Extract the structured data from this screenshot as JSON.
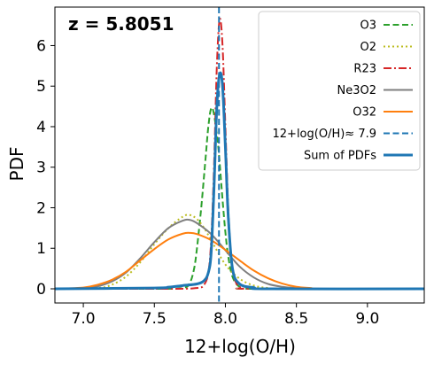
{
  "chart_data": {
    "type": "line",
    "annotation": "z = 5.8051",
    "xlabel": "12+log(O/H)",
    "ylabel": "PDF",
    "xlim": [
      6.8,
      9.4
    ],
    "ylim": [
      -0.35,
      6.95
    ],
    "xticks": [
      7.0,
      7.5,
      8.0,
      8.5,
      9.0
    ],
    "xtick_labels": [
      "7.0",
      "7.5",
      "8.0",
      "8.5",
      "9.0"
    ],
    "yticks": [
      0,
      1,
      2,
      3,
      4,
      5,
      6
    ],
    "ytick_labels": [
      "0",
      "1",
      "2",
      "3",
      "4",
      "5",
      "6"
    ],
    "grid": false,
    "legend_position": "top-right",
    "series": [
      {
        "name": "O3",
        "style": "dashed",
        "color": "#2ca02c",
        "x": [
          6.8,
          7.5,
          7.7,
          7.75,
          7.78,
          7.8,
          7.83,
          7.86,
          7.88,
          7.9,
          7.92,
          7.95,
          7.98,
          8.0,
          8.02,
          8.05,
          8.1,
          8.2,
          9.4
        ],
        "y": [
          0.0,
          0.0,
          0.02,
          0.15,
          0.5,
          1.0,
          2.0,
          3.2,
          4.0,
          4.45,
          4.3,
          3.5,
          2.2,
          1.4,
          0.8,
          0.3,
          0.05,
          0.0,
          0.0
        ]
      },
      {
        "name": "O2",
        "style": "dotted",
        "color": "#bcbd22",
        "x": [
          6.8,
          7.1,
          7.2,
          7.3,
          7.4,
          7.5,
          7.6,
          7.7,
          7.75,
          7.8,
          7.85,
          7.9,
          8.0,
          8.1,
          8.2,
          8.3,
          8.4,
          9.4
        ],
        "y": [
          0.0,
          0.02,
          0.1,
          0.3,
          0.65,
          1.1,
          1.5,
          1.78,
          1.82,
          1.72,
          1.5,
          1.2,
          0.6,
          0.25,
          0.08,
          0.02,
          0.0,
          0.0
        ]
      },
      {
        "name": "R23",
        "style": "dashdot",
        "color": "#d62728",
        "x": [
          6.8,
          7.6,
          7.8,
          7.85,
          7.88,
          7.9,
          7.92,
          7.94,
          7.96,
          7.98,
          8.0,
          8.02,
          8.04,
          8.06,
          8.1,
          8.2,
          9.4
        ],
        "y": [
          0.0,
          0.0,
          0.02,
          0.1,
          0.4,
          1.2,
          3.0,
          5.5,
          6.65,
          6.0,
          4.0,
          2.0,
          0.8,
          0.3,
          0.05,
          0.0,
          0.0
        ]
      },
      {
        "name": "Ne3O2",
        "style": "solid",
        "color": "#7f7f7f",
        "x": [
          6.8,
          7.0,
          7.1,
          7.2,
          7.3,
          7.4,
          7.5,
          7.6,
          7.7,
          7.75,
          7.8,
          7.9,
          8.0,
          8.1,
          8.2,
          8.3,
          8.4,
          8.5,
          8.6,
          9.4
        ],
        "y": [
          0.0,
          0.02,
          0.06,
          0.18,
          0.4,
          0.75,
          1.15,
          1.5,
          1.68,
          1.7,
          1.62,
          1.35,
          0.95,
          0.55,
          0.28,
          0.12,
          0.05,
          0.02,
          0.0,
          0.0
        ]
      },
      {
        "name": "O32",
        "style": "solid",
        "color": "#ff7f0e",
        "x": [
          6.8,
          7.0,
          7.1,
          7.2,
          7.3,
          7.4,
          7.5,
          7.6,
          7.7,
          7.75,
          7.8,
          7.9,
          8.0,
          8.1,
          8.2,
          8.3,
          8.4,
          8.5,
          8.6,
          8.7,
          9.4
        ],
        "y": [
          0.0,
          0.03,
          0.1,
          0.22,
          0.42,
          0.7,
          0.98,
          1.22,
          1.36,
          1.38,
          1.35,
          1.2,
          0.96,
          0.7,
          0.45,
          0.26,
          0.13,
          0.05,
          0.02,
          0.0,
          0.0
        ]
      },
      {
        "name": "Sum of PDFs",
        "style": "solid-thick",
        "color": "#1f77b4",
        "x": [
          6.8,
          7.5,
          7.6,
          7.7,
          7.8,
          7.85,
          7.88,
          7.9,
          7.92,
          7.94,
          7.96,
          7.98,
          8.0,
          8.02,
          8.05,
          8.1,
          8.2,
          8.3,
          9.4
        ],
        "y": [
          0.0,
          0.02,
          0.04,
          0.08,
          0.12,
          0.2,
          0.4,
          0.9,
          2.5,
          4.5,
          5.3,
          5.0,
          3.5,
          1.8,
          0.5,
          0.12,
          0.03,
          0.0,
          0.0
        ]
      }
    ],
    "vline": {
      "name": "12+log(O/H)≈ 7.9",
      "x": 7.955,
      "style": "dashed",
      "color": "#1f77b4"
    }
  }
}
